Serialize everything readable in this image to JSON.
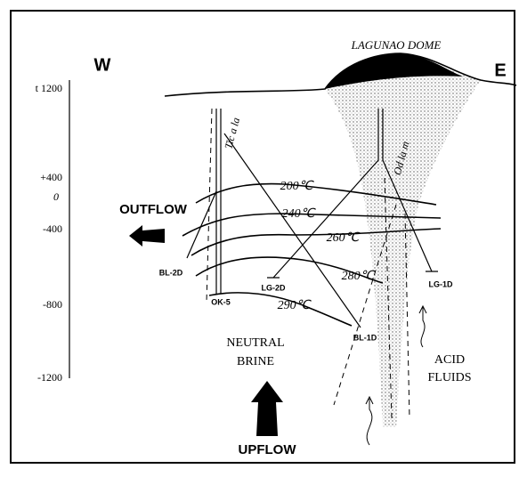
{
  "header": {
    "west": "W",
    "east": "E",
    "dome": "LAGUNAO DOME"
  },
  "elevations": [
    "t 1200",
    "+400",
    "0",
    "-400",
    "-800",
    "-1200"
  ],
  "faults": [
    "Tic a la",
    "Od la m"
  ],
  "isotherms": [
    "200℃",
    "240℃",
    "260℃",
    "280℃",
    "290℃"
  ],
  "wells": [
    "BL-2D",
    "LG-2D",
    "OK-5",
    "BL-1D",
    "LG-1D"
  ],
  "flows": {
    "outflow": "OUTFLOW",
    "upflow": "UPFLOW",
    "brine": [
      "NEUTRAL",
      "BRINE"
    ],
    "acid": [
      "ACID",
      "FLUIDS"
    ]
  }
}
